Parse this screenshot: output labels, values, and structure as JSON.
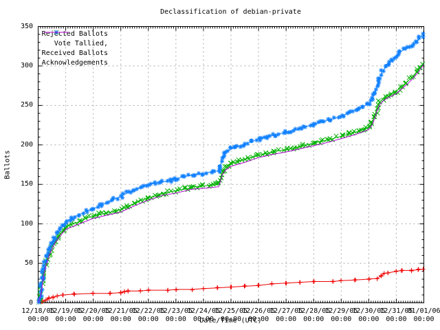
{
  "window": {
    "title": "Declassification of debian-private"
  },
  "chart_data": {
    "type": "line",
    "title": "Declassification of debian-private",
    "xlabel": "Date/Time (UTC)",
    "ylabel": "Ballots",
    "ylim": [
      0,
      350
    ],
    "y_ticks": [
      0,
      50,
      100,
      150,
      200,
      250,
      300,
      350
    ],
    "x_tick_dates": [
      "12/18/05",
      "12/19/05",
      "12/20/05",
      "12/21/05",
      "12/22/05",
      "12/23/05",
      "12/24/05",
      "12/25/05",
      "12/26/05",
      "12/27/05",
      "12/28/05",
      "12/29/05",
      "12/30/05",
      "12/31/05",
      "01/01/06"
    ],
    "x_tick_time": "00:00",
    "x_range_days": [
      0,
      14
    ],
    "grid": true,
    "grid_color": "#a8a8a8",
    "border_color": "#000000",
    "background": "#ffffff",
    "legend_position": "top-left-inside",
    "series": [
      {
        "name": "Rejected Ballots",
        "color": "#ee0000",
        "marker": "plus",
        "marker_spacing_px": 26,
        "jitter": 0.7,
        "points": [
          [
            0,
            0
          ],
          [
            0.15,
            2
          ],
          [
            0.3,
            4
          ],
          [
            0.4,
            6
          ],
          [
            0.55,
            7
          ],
          [
            0.7,
            9
          ],
          [
            0.9,
            10
          ],
          [
            1.3,
            11
          ],
          [
            2,
            12
          ],
          [
            2.6,
            12
          ],
          [
            3,
            13
          ],
          [
            3.15,
            14
          ],
          [
            3.25,
            15
          ],
          [
            3.7,
            15
          ],
          [
            4,
            16
          ],
          [
            4.7,
            16
          ],
          [
            5,
            17
          ],
          [
            5.6,
            17
          ],
          [
            6,
            18
          ],
          [
            6.5,
            19
          ],
          [
            7,
            20
          ],
          [
            7.5,
            21
          ],
          [
            8,
            22
          ],
          [
            8.5,
            24
          ],
          [
            9,
            25
          ],
          [
            9.5,
            26
          ],
          [
            10,
            27
          ],
          [
            10.7,
            27
          ],
          [
            11,
            28
          ],
          [
            11.5,
            29
          ],
          [
            12,
            30
          ],
          [
            12.3,
            31
          ],
          [
            12.45,
            34
          ],
          [
            12.55,
            37
          ],
          [
            12.7,
            38
          ],
          [
            13,
            40
          ],
          [
            13.2,
            41
          ],
          [
            13.55,
            41
          ],
          [
            13.8,
            42
          ],
          [
            14,
            43
          ]
        ]
      },
      {
        "name": "Vote Tallied,",
        "color": "#00b000",
        "marker": "cross",
        "marker_spacing_px": 5,
        "jitter": 2.3,
        "points": [
          [
            0,
            0
          ],
          [
            0.05,
            4
          ],
          [
            0.1,
            12
          ],
          [
            0.15,
            26
          ],
          [
            0.2,
            38
          ],
          [
            0.3,
            52
          ],
          [
            0.4,
            63
          ],
          [
            0.5,
            71
          ],
          [
            0.6,
            78
          ],
          [
            0.7,
            83
          ],
          [
            0.8,
            87
          ],
          [
            0.9,
            92
          ],
          [
            1,
            96
          ],
          [
            1.25,
            100
          ],
          [
            1.5,
            103
          ],
          [
            1.75,
            107
          ],
          [
            2,
            110
          ],
          [
            2.25,
            112
          ],
          [
            2.5,
            114
          ],
          [
            2.75,
            116
          ],
          [
            3,
            118
          ],
          [
            3.25,
            122
          ],
          [
            3.5,
            126
          ],
          [
            3.75,
            130
          ],
          [
            4,
            133
          ],
          [
            4.3,
            136
          ],
          [
            4.6,
            139
          ],
          [
            5,
            142
          ],
          [
            5.3,
            144
          ],
          [
            5.55,
            145
          ],
          [
            5.6,
            147
          ],
          [
            6,
            148
          ],
          [
            6.3,
            149
          ],
          [
            6.55,
            150
          ],
          [
            6.62,
            157
          ],
          [
            6.68,
            165
          ],
          [
            6.8,
            171
          ],
          [
            7,
            176
          ],
          [
            7.3,
            180
          ],
          [
            7.6,
            183
          ],
          [
            8,
            187
          ],
          [
            8.3,
            189
          ],
          [
            8.6,
            192
          ],
          [
            9,
            194
          ],
          [
            9.3,
            196
          ],
          [
            9.6,
            199
          ],
          [
            10,
            202
          ],
          [
            10.3,
            205
          ],
          [
            10.6,
            207
          ],
          [
            11,
            211
          ],
          [
            11.3,
            214
          ],
          [
            11.6,
            217
          ],
          [
            11.9,
            221
          ],
          [
            12,
            223
          ],
          [
            12.1,
            227
          ],
          [
            12.2,
            235
          ],
          [
            12.3,
            246
          ],
          [
            12.4,
            254
          ],
          [
            12.5,
            258
          ],
          [
            12.6,
            262
          ],
          [
            12.8,
            265
          ],
          [
            13,
            268
          ],
          [
            13.2,
            274
          ],
          [
            13.4,
            280
          ],
          [
            13.6,
            287
          ],
          [
            13.8,
            295
          ],
          [
            13.9,
            299
          ],
          [
            14,
            304
          ]
        ]
      },
      {
        "name": "Received Ballots",
        "color": "#1080ff",
        "marker": "star",
        "marker_spacing_px": 5,
        "jitter": 2.3,
        "points": [
          [
            0,
            0
          ],
          [
            0.05,
            5
          ],
          [
            0.1,
            15
          ],
          [
            0.15,
            30
          ],
          [
            0.2,
            42
          ],
          [
            0.3,
            58
          ],
          [
            0.4,
            68
          ],
          [
            0.5,
            76
          ],
          [
            0.6,
            83
          ],
          [
            0.7,
            88
          ],
          [
            0.8,
            93
          ],
          [
            0.9,
            98
          ],
          [
            1,
            103
          ],
          [
            1.25,
            108
          ],
          [
            1.5,
            112
          ],
          [
            1.75,
            116
          ],
          [
            2,
            119
          ],
          [
            2.25,
            123
          ],
          [
            2.5,
            127
          ],
          [
            2.75,
            131
          ],
          [
            3,
            135
          ],
          [
            3.25,
            139
          ],
          [
            3.5,
            143
          ],
          [
            3.75,
            147
          ],
          [
            4,
            150
          ],
          [
            4.2,
            152
          ],
          [
            4.5,
            153
          ],
          [
            4.8,
            155
          ],
          [
            5,
            157
          ],
          [
            5.3,
            160
          ],
          [
            5.6,
            162
          ],
          [
            6,
            164
          ],
          [
            6.3,
            166
          ],
          [
            6.55,
            167
          ],
          [
            6.62,
            174
          ],
          [
            6.68,
            183
          ],
          [
            6.8,
            189
          ],
          [
            7,
            195
          ],
          [
            7.2,
            198
          ],
          [
            7.5,
            201
          ],
          [
            7.8,
            205
          ],
          [
            8,
            207
          ],
          [
            8.3,
            210
          ],
          [
            8.6,
            213
          ],
          [
            9,
            216
          ],
          [
            9.3,
            219
          ],
          [
            9.6,
            222
          ],
          [
            10,
            226
          ],
          [
            10.3,
            229
          ],
          [
            10.6,
            232
          ],
          [
            11,
            236
          ],
          [
            11.3,
            241
          ],
          [
            11.6,
            246
          ],
          [
            11.8,
            249
          ],
          [
            12,
            252
          ],
          [
            12.1,
            256
          ],
          [
            12.2,
            264
          ],
          [
            12.3,
            275
          ],
          [
            12.4,
            286
          ],
          [
            12.5,
            293
          ],
          [
            12.6,
            298
          ],
          [
            12.7,
            302
          ],
          [
            12.85,
            307
          ],
          [
            13,
            313
          ],
          [
            13.15,
            318
          ],
          [
            13.3,
            321
          ],
          [
            13.5,
            324
          ],
          [
            13.65,
            327
          ],
          [
            13.75,
            331
          ],
          [
            13.85,
            336
          ],
          [
            14,
            341
          ]
        ]
      },
      {
        "name": "Acknowledgements",
        "color": "#b000d0",
        "marker": "none",
        "marker_spacing_px": 0,
        "jitter": 0,
        "points": [
          [
            0,
            0
          ],
          [
            0.1,
            10
          ],
          [
            0.2,
            35
          ],
          [
            0.3,
            49
          ],
          [
            0.4,
            60
          ],
          [
            0.5,
            68
          ],
          [
            0.6,
            75
          ],
          [
            0.7,
            80
          ],
          [
            0.8,
            85
          ],
          [
            0.9,
            89
          ],
          [
            1,
            93
          ],
          [
            1.5,
            100
          ],
          [
            2,
            107
          ],
          [
            2.5,
            111
          ],
          [
            3,
            115
          ],
          [
            3.5,
            123
          ],
          [
            4,
            130
          ],
          [
            4.5,
            136
          ],
          [
            5,
            139
          ],
          [
            5.6,
            144
          ],
          [
            6,
            145
          ],
          [
            6.55,
            147
          ],
          [
            6.62,
            154
          ],
          [
            6.68,
            162
          ],
          [
            6.8,
            168
          ],
          [
            7,
            173
          ],
          [
            7.5,
            178
          ],
          [
            8,
            184
          ],
          [
            8.5,
            188
          ],
          [
            9,
            191
          ],
          [
            9.5,
            195
          ],
          [
            10,
            199
          ],
          [
            10.5,
            203
          ],
          [
            11,
            208
          ],
          [
            11.5,
            213
          ],
          [
            11.9,
            218
          ],
          [
            12,
            220
          ],
          [
            12.1,
            224
          ],
          [
            12.2,
            232
          ],
          [
            12.3,
            243
          ],
          [
            12.4,
            251
          ],
          [
            12.5,
            255
          ],
          [
            12.7,
            260
          ],
          [
            12.9,
            263
          ],
          [
            13,
            265
          ],
          [
            13.2,
            271
          ],
          [
            13.4,
            277
          ],
          [
            13.6,
            284
          ],
          [
            13.8,
            292
          ],
          [
            14,
            302
          ]
        ]
      }
    ]
  }
}
